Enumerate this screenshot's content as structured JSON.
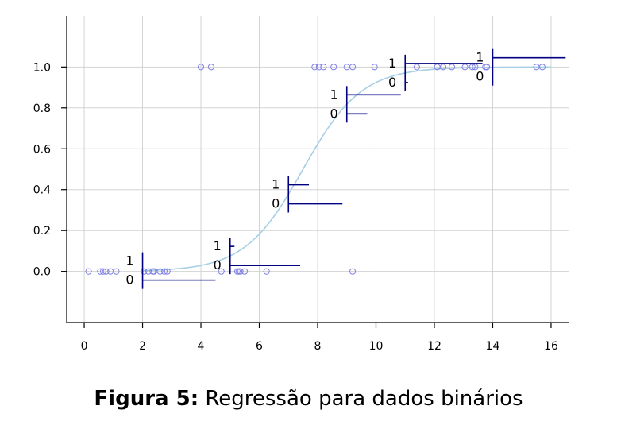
{
  "chart_data": {
    "type": "scatter",
    "title": "",
    "xlabel": "",
    "ylabel": "",
    "xlim": [
      -0.6,
      16.6
    ],
    "ylim": [
      -0.25,
      1.25
    ],
    "x_ticks": [
      0,
      2,
      4,
      6,
      8,
      10,
      12,
      14,
      16
    ],
    "y_ticks": [
      0.0,
      0.2,
      0.4,
      0.6,
      0.8,
      1.0
    ],
    "x_tick_labels": [
      "0",
      "2",
      "4",
      "6",
      "8",
      "10",
      "12",
      "14",
      "16"
    ],
    "y_tick_labels": [
      "0.0",
      "0.2",
      "0.4",
      "0.6",
      "0.8",
      "1.0"
    ],
    "grid": true,
    "points_y0": [
      0.15,
      0.55,
      0.65,
      0.75,
      0.9,
      1.1,
      2.05,
      2.2,
      2.35,
      2.4,
      2.6,
      2.75,
      2.85,
      4.7,
      5.25,
      5.3,
      5.35,
      5.5,
      6.25,
      9.2
    ],
    "points_y1": [
      4.0,
      4.35,
      7.9,
      8.05,
      8.2,
      8.55,
      9.0,
      9.2,
      9.95,
      11.4,
      12.1,
      12.3,
      12.6,
      13.05,
      13.3,
      13.4,
      13.75,
      13.8,
      15.5,
      15.7
    ],
    "logistic_curve": {
      "intercept": -7.5,
      "slope": 1.0,
      "x_range": [
        2.0,
        16.0
      ],
      "color": "#a6cfe6"
    },
    "histogram_bars": [
      {
        "x": 2,
        "upper_label": "1",
        "lower_label": "0",
        "upper_length": 0.0,
        "lower_length": 2.5
      },
      {
        "x": 5,
        "upper_label": "1",
        "lower_label": "0",
        "upper_length": 0.15,
        "lower_length": 2.4
      },
      {
        "x": 7,
        "upper_label": "1",
        "lower_label": "0",
        "upper_length": 0.7,
        "lower_length": 1.85
      },
      {
        "x": 9,
        "upper_label": "1",
        "lower_label": "0",
        "upper_length": 1.85,
        "lower_length": 0.7
      },
      {
        "x": 11,
        "upper_label": "1",
        "lower_label": "0",
        "upper_length": 2.65,
        "lower_length": 0.1
      },
      {
        "x": 14,
        "upper_label": "1",
        "lower_label": "0",
        "upper_length": 2.5,
        "lower_length": 0.0
      }
    ],
    "colors": {
      "points": "#8080e6",
      "bars": "#000080",
      "curve": "#a6cfe6",
      "grid": "#d3d3d3",
      "axis": "#000000"
    }
  },
  "caption": {
    "label": "Figura 5:",
    "text": "Regressão para dados binários"
  }
}
